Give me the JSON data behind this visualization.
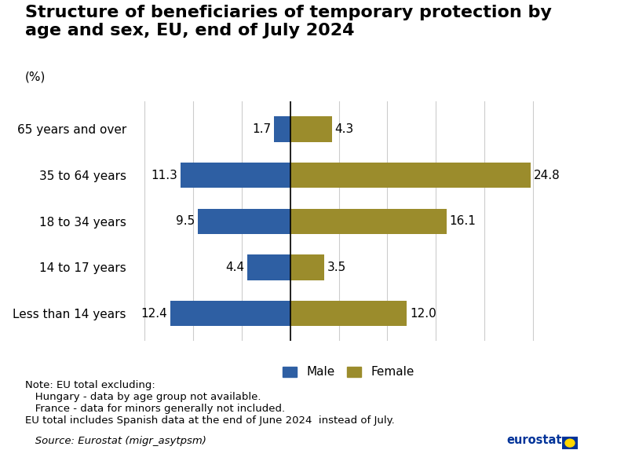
{
  "title": "Structure of beneficiaries of temporary protection by\nage and sex, EU, end of July 2024",
  "subtitle": "(%)",
  "age_groups": [
    "Less than 14 years",
    "14 to 17 years",
    "18 to 34 years",
    "35 to 64 years",
    "65 years and over"
  ],
  "male_values": [
    12.4,
    4.4,
    9.5,
    11.3,
    1.7
  ],
  "female_values": [
    12.0,
    3.5,
    16.1,
    24.8,
    4.3
  ],
  "male_color": "#2E5FA3",
  "female_color": "#9B8C2C",
  "xlim": [
    -16,
    28
  ],
  "bar_height": 0.55,
  "note_line1": "Note: EU total excluding:",
  "note_line2": "   Hungary - data by age group not available.",
  "note_line3": "   France - data for minors generally not included.",
  "note_line4": "EU total includes Spanish data at the end of June 2024  instead of July.",
  "note_source": "   Source: Eurostat (migr_asytpsm)",
  "legend_male": "Male",
  "legend_female": "Female",
  "background_color": "#ffffff",
  "grid_color": "#cccccc",
  "title_fontsize": 16,
  "subtitle_fontsize": 11,
  "label_fontsize": 11,
  "value_fontsize": 11,
  "note_fontsize": 9.5,
  "legend_fontsize": 11,
  "eurostat_color": "#003399"
}
